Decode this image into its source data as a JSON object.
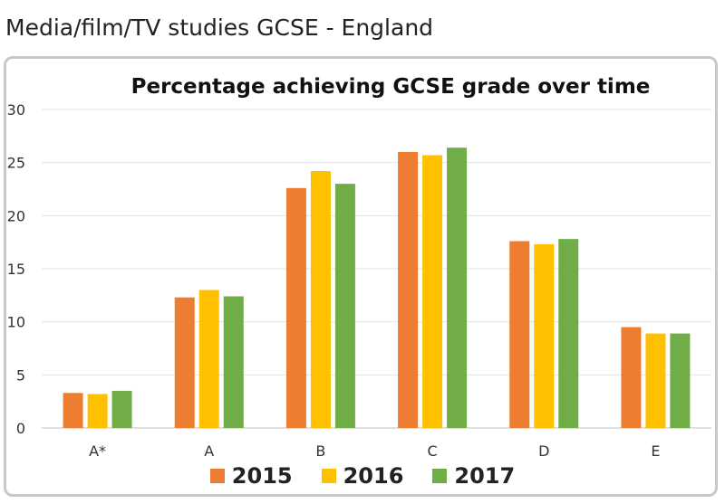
{
  "page": {
    "title": "Media/film/TV studies GCSE - England"
  },
  "chart_data": {
    "type": "bar",
    "title": "Percentage achieving GCSE grade over time",
    "xlabel": "",
    "ylabel": "",
    "ylim": [
      0,
      30
    ],
    "yticks": [
      0,
      5,
      10,
      15,
      20,
      25,
      30
    ],
    "grid": true,
    "legend_position": "bottom",
    "categories": [
      "A*",
      "A",
      "B",
      "C",
      "D",
      "E"
    ],
    "series": [
      {
        "name": "2015",
        "color": "#ED7D31",
        "values": [
          3.3,
          12.3,
          22.6,
          26.0,
          17.6,
          9.5
        ]
      },
      {
        "name": "2016",
        "color": "#FFC000",
        "values": [
          3.2,
          13.0,
          24.2,
          25.7,
          17.3,
          8.9
        ]
      },
      {
        "name": "2017",
        "color": "#70AD47",
        "values": [
          3.5,
          12.4,
          23.0,
          26.4,
          17.8,
          8.9
        ]
      }
    ]
  }
}
